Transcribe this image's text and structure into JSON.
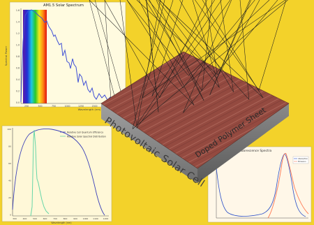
{
  "colors": {
    "background": "#f3d22a",
    "panel": "#ffffff",
    "spectrum_line": "#3f4fd6",
    "slab_top": "#8e3f35",
    "slab_side": "#8a8a8a",
    "rays": "#1f1f1f",
    "abs_curve": "#66d6a8",
    "pl_curve": "#ff7a55"
  },
  "solar_spectrum": {
    "title": "AM1.5 Solar Spectrum",
    "ylabel": "Spectral Power",
    "xlabel": "Wavelength (nm)",
    "x_ticks": [
      "250",
      "500",
      "750",
      "1000",
      "1250",
      "1500",
      "1750",
      "2000"
    ],
    "y_ticks": [
      "1.6",
      "1.4",
      "1.2",
      "1.0",
      "0.8",
      "0.6",
      "0.4",
      "0.2",
      "0.0"
    ]
  },
  "efficiency_plot": {
    "legend": [
      "Relative Cell Quantum Efficiency",
      "Relative Solar Spectral Distribution"
    ],
    "x_ticks": [
      "300",
      "400",
      "500",
      "600",
      "700",
      "800",
      "900",
      "1000",
      "1100",
      "1200"
    ],
    "y_ticks": [
      "100",
      "80",
      "60",
      "40",
      "20",
      "0"
    ],
    "xlabel": "Wavelength (nm)"
  },
  "emission_plot": {
    "title": "Fluorescence Spectra",
    "legend": [
      "Absorption",
      "Emission"
    ]
  },
  "labels": {
    "solar_cell": "Photovoltaic Solar Cell",
    "film": "Doped Polymer Sheet"
  }
}
